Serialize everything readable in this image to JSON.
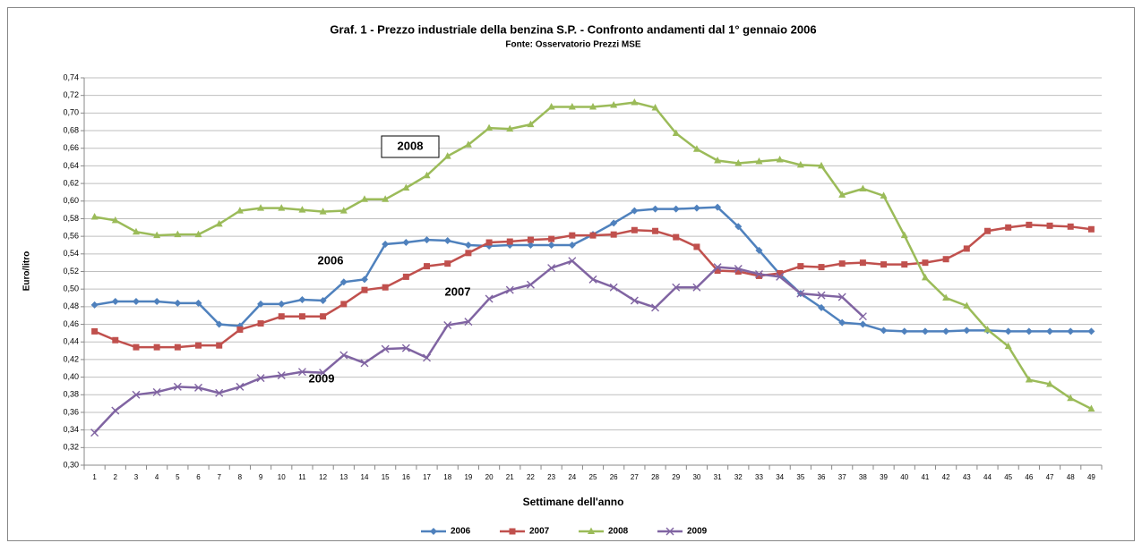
{
  "chart_data": {
    "type": "line",
    "title": "Graf. 1 - Prezzo industriale della benzina S.P. - Confronto andamenti dal 1° gennaio 2006",
    "subtitle": "Fonte: Osservatorio Prezzi MSE",
    "x_label": "Settimane dell'anno",
    "y_label": "Euro/litro",
    "annotations": [
      "2008",
      "2006",
      "2007",
      "2009"
    ],
    "categories": [
      "1",
      "2",
      "3",
      "4",
      "5",
      "6",
      "7",
      "8",
      "9",
      "10",
      "11",
      "12",
      "13",
      "14",
      "15",
      "16",
      "17",
      "18",
      "19",
      "20",
      "21",
      "22",
      "23",
      "24",
      "25",
      "26",
      "27",
      "28",
      "29",
      "30",
      "31",
      "32",
      "33",
      "34",
      "35",
      "36",
      "37",
      "38",
      "39",
      "40",
      "41",
      "42",
      "43",
      "44",
      "45",
      "46",
      "47",
      "48",
      "49"
    ],
    "ylim": [
      0.3,
      0.74
    ],
    "yticks": [
      {
        "value": 0.3,
        "label": "0,30"
      },
      {
        "value": 0.32,
        "label": "0,32"
      },
      {
        "value": 0.34,
        "label": "0,34"
      },
      {
        "value": 0.36,
        "label": "0,36"
      },
      {
        "value": 0.38,
        "label": "0,38"
      },
      {
        "value": 0.4,
        "label": "0,40"
      },
      {
        "value": 0.42,
        "label": "0,42"
      },
      {
        "value": 0.44,
        "label": "0,44"
      },
      {
        "value": 0.46,
        "label": "0,46"
      },
      {
        "value": 0.48,
        "label": "0,48"
      },
      {
        "value": 0.5,
        "label": "0,50"
      },
      {
        "value": 0.52,
        "label": "0,52"
      },
      {
        "value": 0.54,
        "label": "0,54"
      },
      {
        "value": 0.56,
        "label": "0,56"
      },
      {
        "value": 0.58,
        "label": "0,58"
      },
      {
        "value": 0.6,
        "label": "0,60"
      },
      {
        "value": 0.62,
        "label": "0,62"
      },
      {
        "value": 0.64,
        "label": "0,64"
      },
      {
        "value": 0.66,
        "label": "0,66"
      },
      {
        "value": 0.68,
        "label": "0,68"
      },
      {
        "value": 0.7,
        "label": "0,70"
      },
      {
        "value": 0.72,
        "label": "0,72"
      },
      {
        "value": 0.74,
        "label": "0,74"
      }
    ],
    "grid": true,
    "legend": "bottom",
    "series": [
      {
        "name": "2006",
        "color": "#4f81bd",
        "marker": "diamond",
        "values": [
          0.482,
          0.486,
          0.486,
          0.486,
          0.484,
          0.484,
          0.46,
          0.458,
          0.483,
          0.483,
          0.488,
          0.487,
          0.508,
          0.511,
          0.551,
          0.553,
          0.556,
          0.555,
          0.55,
          0.549,
          0.55,
          0.55,
          0.55,
          0.55,
          0.562,
          0.575,
          0.589,
          0.591,
          0.591,
          0.592,
          0.593,
          0.571,
          0.544,
          0.517,
          0.495,
          0.479,
          0.462,
          0.46,
          0.453,
          0.452,
          0.452,
          0.452,
          0.453,
          0.453,
          0.452,
          0.452,
          0.452,
          0.452,
          0.452
        ]
      },
      {
        "name": "2007",
        "color": "#c0504d",
        "marker": "square",
        "values": [
          0.452,
          0.442,
          0.434,
          0.434,
          0.434,
          0.436,
          0.436,
          0.454,
          0.461,
          0.469,
          0.469,
          0.469,
          0.483,
          0.499,
          0.502,
          0.514,
          0.526,
          0.529,
          0.541,
          0.553,
          0.554,
          0.556,
          0.557,
          0.561,
          0.561,
          0.562,
          0.567,
          0.566,
          0.559,
          0.548,
          0.521,
          0.52,
          0.515,
          0.518,
          0.526,
          0.525,
          0.529,
          0.53,
          0.528,
          0.528,
          0.53,
          0.534,
          0.546,
          0.566,
          0.57,
          0.573,
          0.572,
          0.571,
          0.568
        ]
      },
      {
        "name": "2008",
        "color": "#9bbb59",
        "marker": "triangle",
        "values": [
          0.582,
          0.578,
          0.565,
          0.561,
          0.562,
          0.562,
          0.574,
          0.589,
          0.592,
          0.592,
          0.59,
          0.588,
          0.589,
          0.602,
          0.602,
          0.615,
          0.629,
          0.651,
          0.664,
          0.683,
          0.682,
          0.687,
          0.707,
          0.707,
          0.707,
          0.709,
          0.712,
          0.706,
          0.677,
          0.659,
          0.646,
          0.643,
          0.645,
          0.647,
          0.641,
          0.64,
          0.607,
          0.614,
          0.606,
          0.561,
          0.513,
          0.49,
          0.481,
          0.454,
          0.435,
          0.397,
          0.392,
          0.376,
          0.364
        ]
      },
      {
        "name": "2009",
        "color": "#8064a2",
        "marker": "x",
        "values": [
          0.337,
          0.362,
          0.38,
          0.383,
          0.389,
          0.388,
          0.382,
          0.389,
          0.399,
          0.402,
          0.406,
          0.405,
          0.425,
          0.416,
          0.432,
          0.433,
          0.422,
          0.459,
          0.463,
          0.489,
          0.499,
          0.505,
          0.524,
          0.532,
          0.511,
          0.502,
          0.487,
          0.479,
          0.502,
          0.502,
          0.525,
          0.523,
          0.517,
          0.514,
          0.495,
          0.493,
          0.491,
          0.469,
          null,
          null,
          null,
          null,
          null,
          null,
          null,
          null,
          null,
          null,
          null
        ]
      }
    ]
  }
}
